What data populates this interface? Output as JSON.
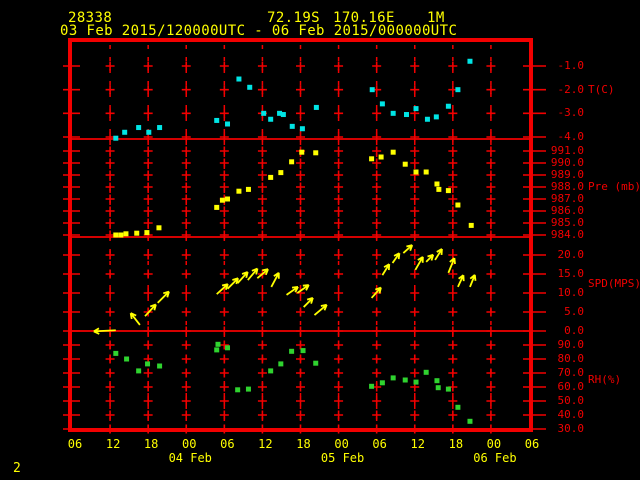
{
  "header": {
    "station_id": "28338",
    "latitude": "72.19S",
    "longitude": "170.16E",
    "elevation": "1M",
    "time_range": "03 Feb 2015/120000UTC - 06 Feb 2015/000000UTC"
  },
  "footer": {
    "page_number": "2"
  },
  "colors": {
    "background": "#000000",
    "grid_red": "#f20000",
    "text_yellow": "#ffff00",
    "temperature": "#00e5e5",
    "pressure": "#ffff00",
    "wind": "#ffff00",
    "humidity": "#2fd32f"
  },
  "x_axis": {
    "hour_labels": [
      "06",
      "12",
      "18",
      "00",
      "06",
      "12",
      "18",
      "00",
      "06",
      "12",
      "18",
      "00",
      "06"
    ],
    "hour_step_hours": 6,
    "axis_span_hours": 72,
    "date_labels": [
      {
        "label": "04 Feb",
        "hour_offset": 18
      },
      {
        "label": "05 Feb",
        "hour_offset": 42
      },
      {
        "label": "06 Feb",
        "hour_offset": 66
      }
    ]
  },
  "chart_data": [
    {
      "panel": "temperature",
      "type": "scatter",
      "ylabel": "T(C)",
      "ytick_labels": [
        "-1.0",
        "-2.0",
        "-3.0",
        "-4.0"
      ],
      "yticks": [
        -1.0,
        -2.0,
        -3.0,
        -4.0
      ],
      "unit_label_at_value": -2.0,
      "point_format": [
        "hours_from_axis_start",
        "value"
      ],
      "points": [
        [
          6.9,
          -4.05
        ],
        [
          8.3,
          -3.8
        ],
        [
          10.5,
          -3.6
        ],
        [
          12.1,
          -3.8
        ],
        [
          13.8,
          -3.6
        ],
        [
          22.8,
          -3.3
        ],
        [
          24.5,
          -3.45
        ],
        [
          26.3,
          -1.55
        ],
        [
          28.0,
          -1.9
        ],
        [
          30.2,
          -3.0
        ],
        [
          31.3,
          -3.25
        ],
        [
          32.7,
          -3.0
        ],
        [
          33.3,
          -3.05
        ],
        [
          34.7,
          -3.55
        ],
        [
          36.3,
          -3.65
        ],
        [
          38.5,
          -2.75
        ],
        [
          47.3,
          -2.0
        ],
        [
          48.9,
          -2.6
        ],
        [
          50.6,
          -3.0
        ],
        [
          52.7,
          -3.05
        ],
        [
          54.2,
          -2.8
        ],
        [
          56.0,
          -3.25
        ],
        [
          57.4,
          -3.15
        ],
        [
          59.3,
          -2.7
        ],
        [
          60.8,
          -2.0
        ],
        [
          62.7,
          -0.8
        ]
      ]
    },
    {
      "panel": "pressure",
      "type": "scatter",
      "ylabel": "Pre (mb)",
      "ytick_labels": [
        "991.0",
        "990.0",
        "989.0",
        "988.0",
        "987.0",
        "986.0",
        "985.0",
        "984.0"
      ],
      "yticks": [
        991,
        990,
        989,
        988,
        987,
        986,
        985,
        984
      ],
      "unit_label_at_value": 988.0,
      "point_format": [
        "hours_from_axis_start",
        "value"
      ],
      "points": [
        [
          6.9,
          984.0
        ],
        [
          7.7,
          984.0
        ],
        [
          8.5,
          984.1
        ],
        [
          10.2,
          984.15
        ],
        [
          11.8,
          984.2
        ],
        [
          13.7,
          984.6
        ],
        [
          22.8,
          986.3
        ],
        [
          23.7,
          986.9
        ],
        [
          24.5,
          987.0
        ],
        [
          26.3,
          987.65
        ],
        [
          27.8,
          987.8
        ],
        [
          31.3,
          988.8
        ],
        [
          32.9,
          989.2
        ],
        [
          34.6,
          990.1
        ],
        [
          36.2,
          990.9
        ],
        [
          38.4,
          990.85
        ],
        [
          47.2,
          990.35
        ],
        [
          48.7,
          990.5
        ],
        [
          50.6,
          990.9
        ],
        [
          52.5,
          989.9
        ],
        [
          54.2,
          989.25
        ],
        [
          55.8,
          989.25
        ],
        [
          57.5,
          988.25
        ],
        [
          57.8,
          987.8
        ],
        [
          59.3,
          987.7
        ],
        [
          60.8,
          986.5
        ],
        [
          62.9,
          984.8
        ]
      ]
    },
    {
      "panel": "wind_speed",
      "type": "wind_arrows",
      "ylabel": "SPD(MPS)",
      "ytick_labels": [
        "20.0",
        "15.0",
        "10.0",
        "5.0",
        "0.0"
      ],
      "yticks": [
        20,
        15,
        10,
        5,
        0
      ],
      "unit_label_at_value": 12.5,
      "arrow_format": [
        "hours_from_axis_start",
        "speed_mps",
        "angle_deg_ccw_from_east",
        "length_px"
      ],
      "arrows": [
        [
          6.9,
          0.2,
          183,
          22
        ],
        [
          10.7,
          1.6,
          128,
          15
        ],
        [
          11.5,
          3.9,
          47,
          16
        ],
        [
          13.5,
          7.4,
          45,
          16
        ],
        [
          22.8,
          9.7,
          42,
          15
        ],
        [
          24.5,
          11.1,
          45,
          15
        ],
        [
          26.1,
          12.6,
          48,
          15
        ],
        [
          27.7,
          13.4,
          50,
          15
        ],
        [
          29.2,
          13.9,
          40,
          14
        ],
        [
          31.4,
          11.6,
          62,
          16
        ],
        [
          33.8,
          9.5,
          35,
          14
        ],
        [
          35.5,
          10.0,
          35,
          14
        ],
        [
          36.5,
          6.3,
          45,
          13
        ],
        [
          38.2,
          4.2,
          40,
          16
        ],
        [
          47.2,
          8.7,
          48,
          14
        ],
        [
          48.9,
          14.7,
          58,
          13
        ],
        [
          50.5,
          17.9,
          55,
          12
        ],
        [
          52.2,
          20.5,
          42,
          12
        ],
        [
          54.1,
          16.1,
          60,
          15
        ],
        [
          55.8,
          18.2,
          45,
          10
        ],
        [
          57.2,
          18.7,
          58,
          13
        ],
        [
          59.3,
          15.3,
          68,
          16
        ],
        [
          60.8,
          11.6,
          65,
          13
        ],
        [
          62.7,
          11.6,
          68,
          13
        ]
      ]
    },
    {
      "panel": "relative_humidity",
      "type": "scatter",
      "ylabel": "RH(%)",
      "ytick_labels": [
        "90.0",
        "80.0",
        "70.0",
        "60.0",
        "50.0",
        "40.0",
        "30.0"
      ],
      "yticks": [
        90,
        80,
        70,
        60,
        50,
        40,
        30
      ],
      "unit_label_at_value": 65,
      "point_format": [
        "hours_from_axis_start",
        "value"
      ],
      "points": [
        [
          6.9,
          84
        ],
        [
          8.6,
          80
        ],
        [
          10.5,
          71.5
        ],
        [
          11.9,
          76.5
        ],
        [
          13.8,
          75
        ],
        [
          22.8,
          86.5
        ],
        [
          23.0,
          90.5
        ],
        [
          24.5,
          88
        ],
        [
          26.1,
          58
        ],
        [
          27.8,
          58.5
        ],
        [
          31.3,
          71.5
        ],
        [
          32.9,
          76.5
        ],
        [
          34.6,
          85.5
        ],
        [
          36.4,
          86
        ],
        [
          38.4,
          77
        ],
        [
          47.2,
          60.5
        ],
        [
          48.9,
          63
        ],
        [
          50.6,
          66.5
        ],
        [
          52.5,
          65
        ],
        [
          54.2,
          63.5
        ],
        [
          55.8,
          70.5
        ],
        [
          57.5,
          64.5
        ],
        [
          57.7,
          59.5
        ],
        [
          59.3,
          58.5
        ],
        [
          60.8,
          45.5
        ],
        [
          62.7,
          35.5
        ]
      ]
    }
  ]
}
